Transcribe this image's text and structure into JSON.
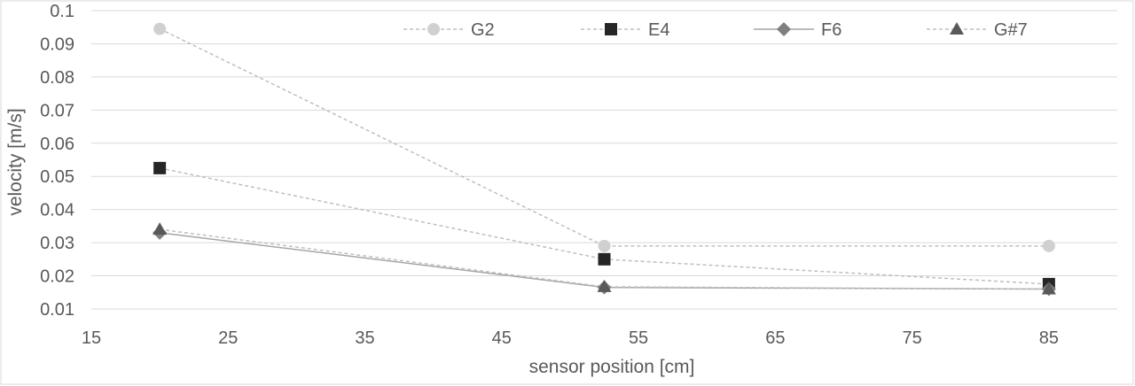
{
  "chart_data": {
    "type": "line",
    "title": "",
    "xlabel": "sensor position [cm]",
    "ylabel": "velocity [m/s]",
    "xlim": [
      15,
      90
    ],
    "ylim": [
      0.01,
      0.1
    ],
    "xticks": [
      15,
      25,
      35,
      45,
      55,
      65,
      75,
      85
    ],
    "yticks": [
      0.01,
      0.02,
      0.03,
      0.04,
      0.05,
      0.06,
      0.07,
      0.08,
      0.09,
      0.1
    ],
    "xtick_labels": [
      "15",
      "25",
      "35",
      "45",
      "55",
      "65",
      "75",
      "85"
    ],
    "ytick_labels": [
      "0.01",
      "0.02",
      "0.03",
      "0.04",
      "0.05",
      "0.06",
      "0.07",
      "0.08",
      "0.09",
      "0.1"
    ],
    "grid": "horizontal",
    "legend_position": "top",
    "series": [
      {
        "name": "G2",
        "marker": "circle",
        "line": "dashed",
        "color": "#d0d0d0",
        "line_color": "#bfbfbf",
        "x": [
          20,
          52.5,
          85
        ],
        "values": [
          0.0945,
          0.029,
          0.029
        ]
      },
      {
        "name": "E4",
        "marker": "square",
        "line": "dashed",
        "color": "#262626",
        "line_color": "#bfbfbf",
        "x": [
          20,
          52.5,
          85
        ],
        "values": [
          0.0525,
          0.025,
          0.0175
        ]
      },
      {
        "name": "F6",
        "marker": "diamond",
        "line": "solid",
        "color": "#7f7f7f",
        "line_color": "#a6a6a6",
        "x": [
          20,
          52.5,
          85
        ],
        "values": [
          0.033,
          0.0165,
          0.016
        ]
      },
      {
        "name": "G#7",
        "marker": "triangle",
        "line": "dashed",
        "color": "#595959",
        "line_color": "#bfbfbf",
        "x": [
          20,
          52.5,
          85
        ],
        "values": [
          0.034,
          0.0167,
          0.016
        ]
      }
    ]
  }
}
